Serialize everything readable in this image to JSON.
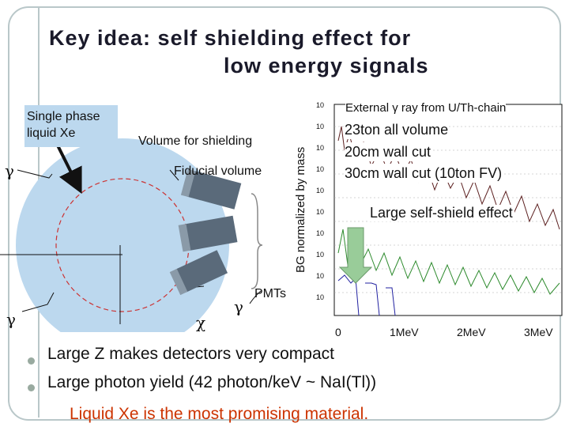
{
  "title": {
    "line1": "Key idea: self shielding effect for",
    "line2": "low energy signals"
  },
  "diagram": {
    "single_phase_label": "Single phase liquid Xe",
    "volume_label": "Volume for shielding",
    "fiducial_label": "Fiducial volume",
    "pmts_label": "PMTs",
    "gamma": "γ",
    "chi": "χ"
  },
  "chart": {
    "y_axis_label": "BG normalized by mass",
    "x_ticks": [
      "0",
      "1MeV",
      "2MeV",
      "3MeV"
    ],
    "y_ticks": [
      "10",
      "10",
      "10",
      "10",
      "10",
      "10",
      "10",
      "10",
      "10",
      "10"
    ],
    "external_label": "External γ ray from U/Th-chain",
    "legend": [
      "23ton all volume",
      "20cm wall cut",
      "30cm wall cut (10ton FV)"
    ],
    "effect_label": "Large self-shield effect"
  },
  "bullets": [
    "Large Z makes detectors very compact",
    "Large photon yield (42 photon/keV ~ NaI(Tl))"
  ],
  "conclusion": "Liquid Xe is the most promising material.",
  "colors": {
    "detector": "#bcd8ee",
    "series1": "#5c2020",
    "series2": "#2e8b2e",
    "series3": "#2020a0",
    "arrow": "#99cc99",
    "conclusion": "#cc3300"
  }
}
